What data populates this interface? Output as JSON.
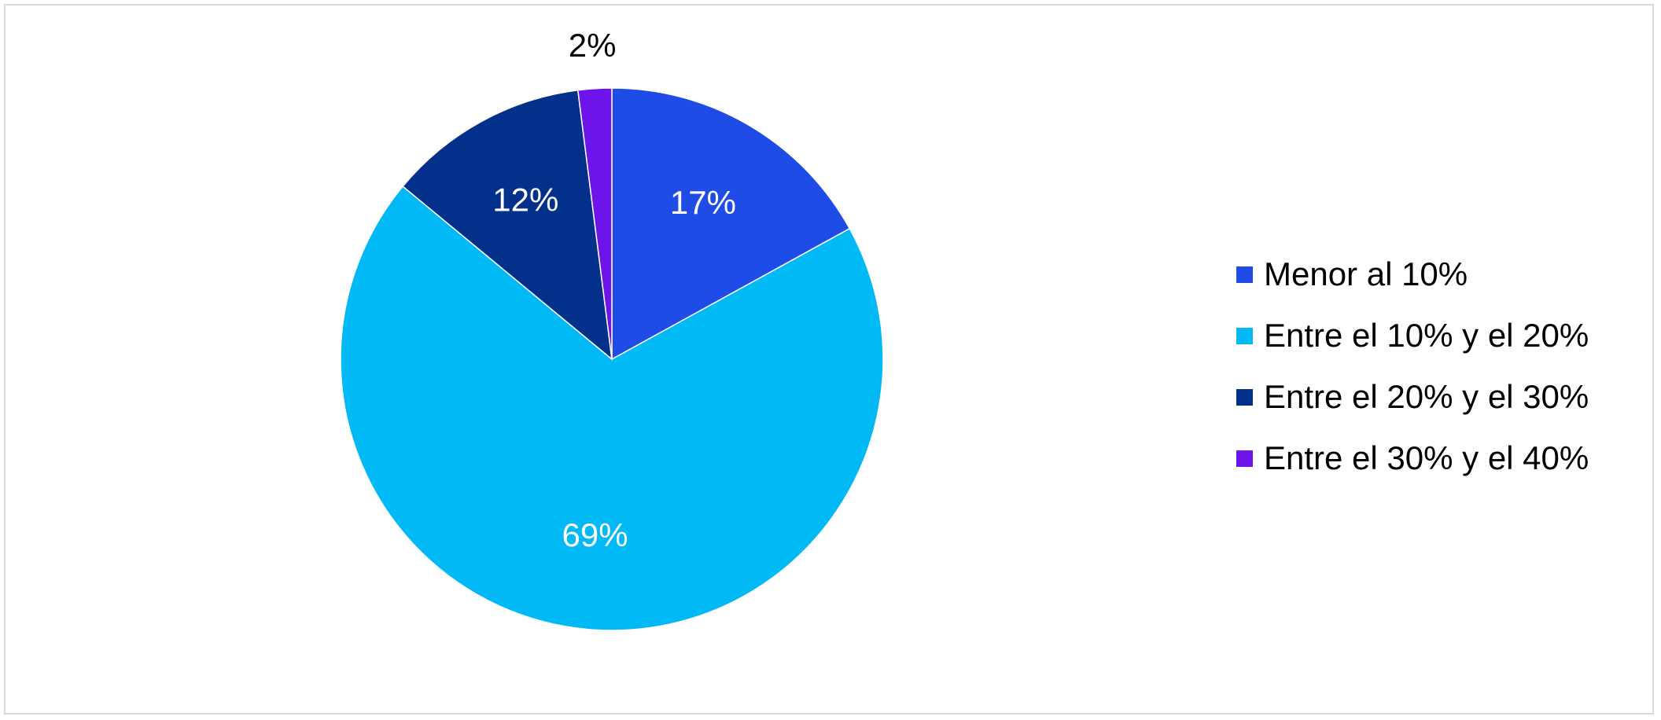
{
  "chart_data": {
    "type": "pie",
    "categories": [
      "Menor al 10%",
      "Entre el 10% y el 20%",
      "Entre el 20% y el 30%",
      "Entre el 30% y el 40%"
    ],
    "values": [
      17,
      69,
      12,
      2
    ],
    "data_labels": [
      "17%",
      "69%",
      "12%",
      "2%"
    ],
    "colors": [
      "#1f4be6",
      "#00b9f5",
      "#02308a",
      "#6c14ea"
    ],
    "start_angle": "12 o'clock, clockwise",
    "legend_position": "right"
  }
}
